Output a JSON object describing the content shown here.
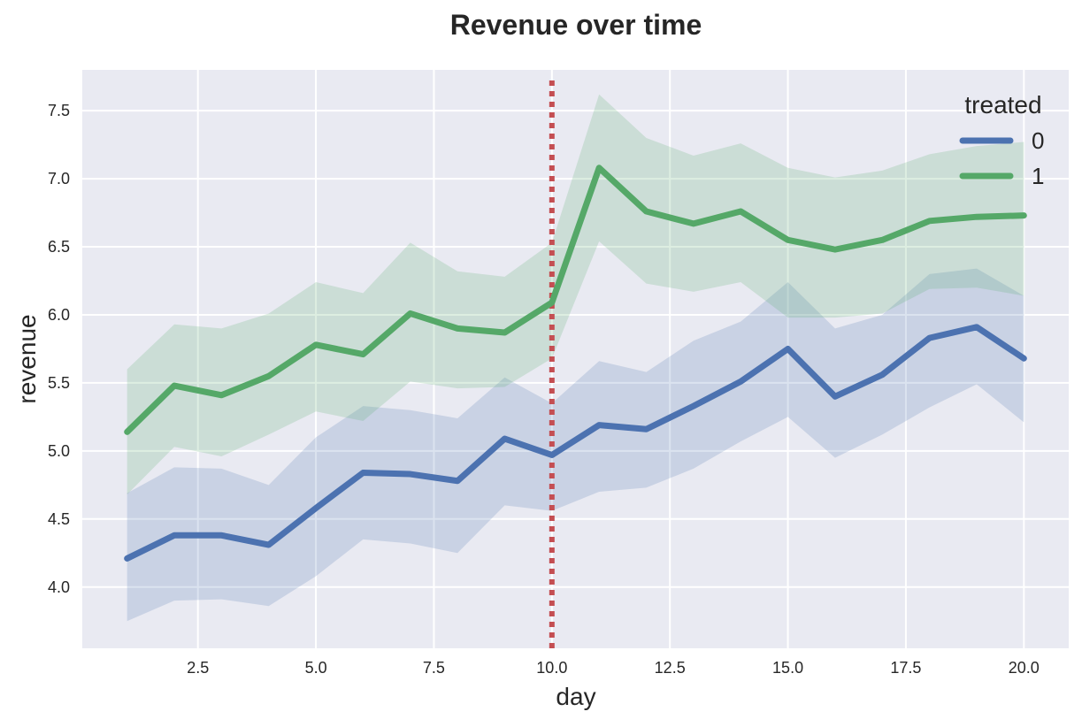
{
  "chart_data": {
    "type": "line",
    "title": "Revenue over time",
    "xlabel": "day",
    "ylabel": "revenue",
    "xlim": [
      0.05,
      20.95
    ],
    "ylim": [
      3.55,
      7.8
    ],
    "xticks": [
      2.5,
      5.0,
      7.5,
      10.0,
      12.5,
      15.0,
      17.5,
      20.0
    ],
    "xtick_labels": [
      "2.5",
      "5.0",
      "7.5",
      "10.0",
      "12.5",
      "15.0",
      "17.5",
      "20.0"
    ],
    "yticks": [
      4.0,
      4.5,
      5.0,
      5.5,
      6.0,
      6.5,
      7.0,
      7.5
    ],
    "ytick_labels": [
      "4.0",
      "4.5",
      "5.0",
      "5.5",
      "6.0",
      "6.5",
      "7.0",
      "7.5"
    ],
    "grid": true,
    "background": "#e9eaf2",
    "legend": {
      "title": "treated",
      "position": "top-right"
    },
    "x": [
      1,
      2,
      3,
      4,
      5,
      6,
      7,
      8,
      9,
      10,
      11,
      12,
      13,
      14,
      15,
      16,
      17,
      18,
      19,
      20
    ],
    "series": [
      {
        "name": "0",
        "color": "#4c72b0",
        "values": [
          4.21,
          4.38,
          4.38,
          4.31,
          4.58,
          4.84,
          4.83,
          4.78,
          5.09,
          4.97,
          5.19,
          5.16,
          5.33,
          5.51,
          5.75,
          5.4,
          5.56,
          5.83,
          5.91,
          5.68
        ],
        "lower": [
          3.75,
          3.9,
          3.91,
          3.86,
          4.08,
          4.35,
          4.32,
          4.25,
          4.6,
          4.56,
          4.7,
          4.73,
          4.87,
          5.07,
          5.25,
          4.95,
          5.12,
          5.32,
          5.49,
          5.21
        ],
        "upper": [
          4.69,
          4.88,
          4.87,
          4.75,
          5.1,
          5.33,
          5.3,
          5.24,
          5.54,
          5.35,
          5.66,
          5.58,
          5.81,
          5.95,
          6.24,
          5.9,
          6.0,
          6.3,
          6.34,
          6.14
        ]
      },
      {
        "name": "1",
        "color": "#55a868",
        "values": [
          5.14,
          5.48,
          5.41,
          5.55,
          5.78,
          5.71,
          6.01,
          5.9,
          5.87,
          6.09,
          7.08,
          6.76,
          6.67,
          6.76,
          6.55,
          6.48,
          6.55,
          6.69,
          6.72,
          6.73
        ],
        "lower": [
          4.68,
          5.03,
          4.96,
          5.12,
          5.29,
          5.22,
          5.51,
          5.46,
          5.47,
          5.68,
          6.54,
          6.23,
          6.17,
          6.24,
          5.98,
          5.98,
          6.01,
          6.19,
          6.2,
          6.14
        ],
        "upper": [
          5.6,
          5.93,
          5.9,
          6.01,
          6.24,
          6.16,
          6.53,
          6.32,
          6.28,
          6.53,
          7.62,
          7.3,
          7.17,
          7.26,
          7.08,
          7.01,
          7.06,
          7.18,
          7.24,
          7.27
        ]
      }
    ],
    "annotations": [
      {
        "type": "vline",
        "x": 10.0,
        "color": "#c44e52",
        "style": "dotted"
      }
    ]
  }
}
